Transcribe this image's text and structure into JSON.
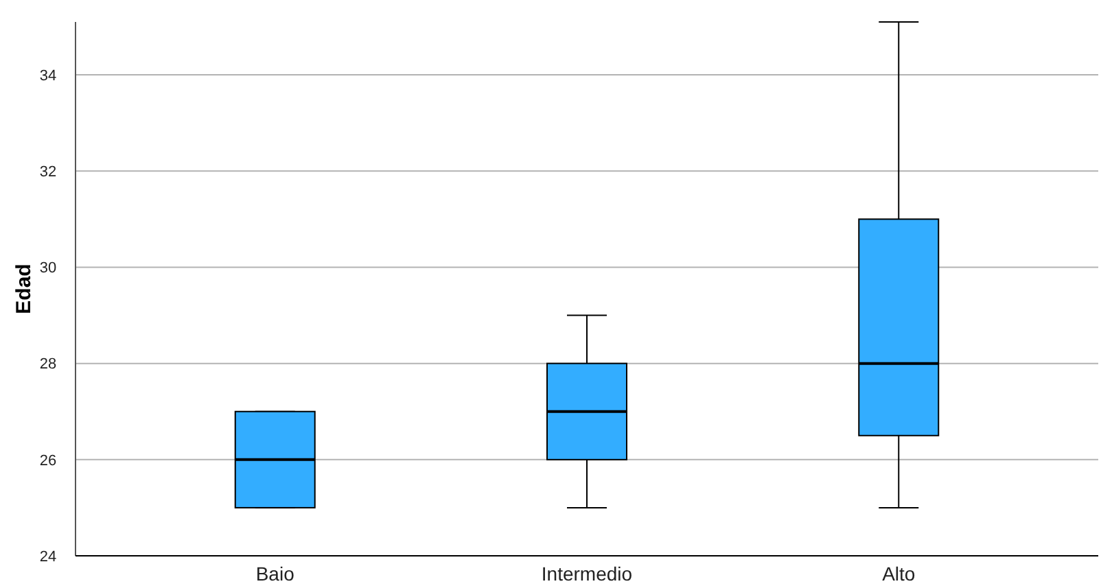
{
  "chart_data": {
    "type": "box",
    "ylabel": "Edad",
    "categories": [
      "Baio",
      "Intermedio",
      "Alto"
    ],
    "boxes": [
      {
        "low": 25,
        "q1": 25,
        "median": 26,
        "q3": 27,
        "high": 27
      },
      {
        "low": 25,
        "q1": 26,
        "median": 27,
        "q3": 28,
        "high": 29
      },
      {
        "low": 25,
        "q1": 26.5,
        "median": 28,
        "q3": 31,
        "high": 35.1
      }
    ],
    "color": "#33adff",
    "ylim": [
      24,
      35.1
    ],
    "yticks": [
      24,
      26,
      28,
      30,
      32,
      34
    ],
    "grid": "y"
  }
}
